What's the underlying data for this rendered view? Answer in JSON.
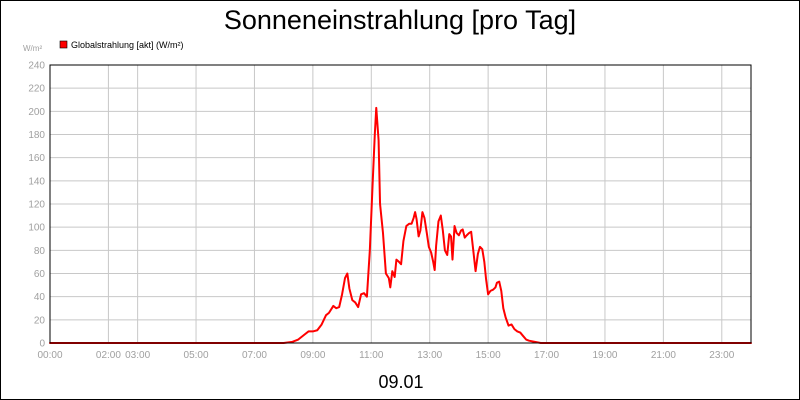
{
  "chart_data": {
    "type": "line",
    "title": "Sonneneinstrahlung [pro Tag]",
    "unit_label": "W/m²",
    "xlabel": "09.01",
    "ylim": [
      0,
      240
    ],
    "xlim": [
      0,
      24
    ],
    "grid": true,
    "legend_position": "top-left",
    "x_ticks": [
      {
        "value": 0,
        "label": "00:00"
      },
      {
        "value": 2,
        "label": "02:00"
      },
      {
        "value": 3,
        "label": "03:00"
      },
      {
        "value": 5,
        "label": "05:00"
      },
      {
        "value": 7,
        "label": "07:00"
      },
      {
        "value": 9,
        "label": "09:00"
      },
      {
        "value": 11,
        "label": "11:00"
      },
      {
        "value": 13,
        "label": "13:00"
      },
      {
        "value": 15,
        "label": "15:00"
      },
      {
        "value": 17,
        "label": "17:00"
      },
      {
        "value": 19,
        "label": "19:00"
      },
      {
        "value": 21,
        "label": "21:00"
      },
      {
        "value": 23,
        "label": "23:00"
      }
    ],
    "y_ticks": [
      0,
      20,
      40,
      60,
      80,
      100,
      120,
      140,
      160,
      180,
      200,
      220,
      240
    ],
    "x_gridlines": [
      0,
      2,
      3,
      5,
      7,
      9,
      11,
      13,
      15,
      17,
      19,
      21,
      23,
      24
    ],
    "series": [
      {
        "name": "Globalstrahlung [akt] (W/m²)",
        "color": "#ff0000",
        "points": [
          [
            0,
            0
          ],
          [
            8.0,
            0
          ],
          [
            8.3,
            1
          ],
          [
            8.5,
            3
          ],
          [
            8.7,
            7
          ],
          [
            8.85,
            10
          ],
          [
            9.0,
            10
          ],
          [
            9.15,
            11
          ],
          [
            9.3,
            16
          ],
          [
            9.45,
            24
          ],
          [
            9.55,
            26
          ],
          [
            9.7,
            32
          ],
          [
            9.8,
            30
          ],
          [
            9.9,
            31
          ],
          [
            10.0,
            42
          ],
          [
            10.1,
            56
          ],
          [
            10.18,
            60
          ],
          [
            10.25,
            47
          ],
          [
            10.35,
            37
          ],
          [
            10.45,
            35
          ],
          [
            10.55,
            31
          ],
          [
            10.65,
            42
          ],
          [
            10.75,
            43
          ],
          [
            10.85,
            40
          ],
          [
            10.95,
            80
          ],
          [
            11.05,
            140
          ],
          [
            11.12,
            180
          ],
          [
            11.17,
            203
          ],
          [
            11.25,
            175
          ],
          [
            11.3,
            120
          ],
          [
            11.4,
            95
          ],
          [
            11.5,
            60
          ],
          [
            11.6,
            56
          ],
          [
            11.65,
            48
          ],
          [
            11.72,
            62
          ],
          [
            11.8,
            57
          ],
          [
            11.86,
            72
          ],
          [
            11.95,
            70
          ],
          [
            12.02,
            68
          ],
          [
            12.1,
            88
          ],
          [
            12.2,
            101
          ],
          [
            12.3,
            103
          ],
          [
            12.38,
            103
          ],
          [
            12.45,
            108
          ],
          [
            12.5,
            113
          ],
          [
            12.55,
            107
          ],
          [
            12.62,
            92
          ],
          [
            12.68,
            97
          ],
          [
            12.75,
            113
          ],
          [
            12.82,
            108
          ],
          [
            12.9,
            95
          ],
          [
            12.97,
            83
          ],
          [
            13.05,
            78
          ],
          [
            13.12,
            70
          ],
          [
            13.17,
            63
          ],
          [
            13.22,
            84
          ],
          [
            13.3,
            105
          ],
          [
            13.38,
            110
          ],
          [
            13.45,
            97
          ],
          [
            13.52,
            80
          ],
          [
            13.6,
            76
          ],
          [
            13.67,
            94
          ],
          [
            13.73,
            92
          ],
          [
            13.78,
            72
          ],
          [
            13.85,
            101
          ],
          [
            13.92,
            95
          ],
          [
            14.0,
            93
          ],
          [
            14.07,
            97
          ],
          [
            14.13,
            98
          ],
          [
            14.2,
            91
          ],
          [
            14.27,
            93
          ],
          [
            14.35,
            95
          ],
          [
            14.42,
            96
          ],
          [
            14.5,
            78
          ],
          [
            14.57,
            62
          ],
          [
            14.65,
            77
          ],
          [
            14.72,
            83
          ],
          [
            14.8,
            81
          ],
          [
            14.87,
            70
          ],
          [
            14.93,
            55
          ],
          [
            15.0,
            42
          ],
          [
            15.08,
            45
          ],
          [
            15.17,
            46
          ],
          [
            15.25,
            48
          ],
          [
            15.3,
            52
          ],
          [
            15.38,
            53
          ],
          [
            15.45,
            45
          ],
          [
            15.52,
            30
          ],
          [
            15.6,
            22
          ],
          [
            15.7,
            15
          ],
          [
            15.8,
            16
          ],
          [
            15.9,
            12
          ],
          [
            16.0,
            10
          ],
          [
            16.1,
            9
          ],
          [
            16.2,
            6
          ],
          [
            16.3,
            3
          ],
          [
            16.4,
            2
          ],
          [
            16.6,
            1
          ],
          [
            16.8,
            0
          ],
          [
            24,
            0
          ]
        ]
      }
    ]
  }
}
